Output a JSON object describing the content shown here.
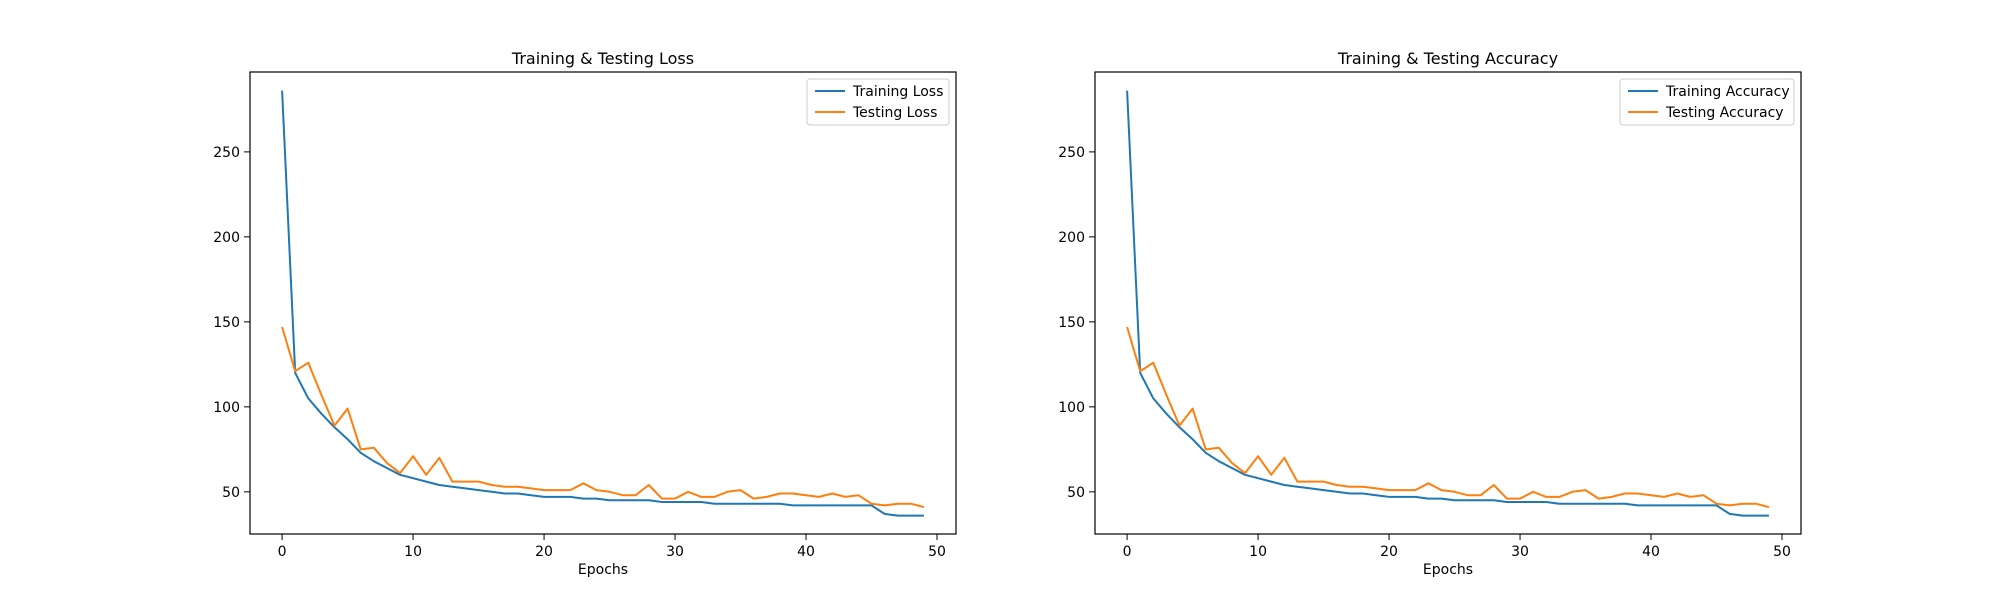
{
  "chart_data": [
    {
      "type": "line",
      "title": "Training & Testing Loss",
      "xlabel": "Epochs",
      "ylabel": "",
      "xlim": [
        -2.45,
        51.45
      ],
      "ylim": [
        25.2,
        297.0
      ],
      "xticks": [
        0,
        10,
        20,
        30,
        40,
        50
      ],
      "yticks": [
        50,
        100,
        150,
        200,
        250
      ],
      "grid": false,
      "legend_position": "top-right",
      "x": [
        0,
        1,
        2,
        3,
        4,
        5,
        6,
        7,
        8,
        9,
        10,
        11,
        12,
        13,
        14,
        15,
        16,
        17,
        18,
        19,
        20,
        21,
        22,
        23,
        24,
        25,
        26,
        27,
        28,
        29,
        30,
        31,
        32,
        33,
        34,
        35,
        36,
        37,
        38,
        39,
        40,
        41,
        42,
        43,
        44,
        45,
        46,
        47,
        48,
        49
      ],
      "series": [
        {
          "name": "Training Loss",
          "color": "#1f77b4",
          "values": [
            286,
            120,
            105,
            96,
            88,
            81,
            73,
            68,
            64,
            60,
            58,
            56,
            54,
            53,
            52,
            51,
            50,
            49,
            49,
            48,
            47,
            47,
            47,
            46,
            46,
            45,
            45,
            45,
            45,
            44,
            44,
            44,
            44,
            43,
            43,
            43,
            43,
            43,
            43,
            42,
            42,
            42,
            42,
            42,
            42,
            42,
            37,
            36,
            36,
            36
          ]
        },
        {
          "name": "Testing Loss",
          "color": "#ff7f0e",
          "values": [
            147,
            121,
            126,
            107,
            89,
            99,
            75,
            76,
            67,
            61,
            71,
            60,
            70,
            56,
            56,
            56,
            54,
            53,
            53,
            52,
            51,
            51,
            51,
            55,
            51,
            50,
            48,
            48,
            54,
            46,
            46,
            50,
            47,
            47,
            50,
            51,
            46,
            47,
            49,
            49,
            48,
            47,
            49,
            47,
            48,
            43,
            42,
            43,
            43,
            41
          ]
        }
      ]
    },
    {
      "type": "line",
      "title": "Training & Testing Accuracy",
      "xlabel": "Epochs",
      "ylabel": "",
      "xlim": [
        -2.45,
        51.45
      ],
      "ylim": [
        25.2,
        297.0
      ],
      "xticks": [
        0,
        10,
        20,
        30,
        40,
        50
      ],
      "yticks": [
        50,
        100,
        150,
        200,
        250
      ],
      "grid": false,
      "legend_position": "top-right",
      "x": [
        0,
        1,
        2,
        3,
        4,
        5,
        6,
        7,
        8,
        9,
        10,
        11,
        12,
        13,
        14,
        15,
        16,
        17,
        18,
        19,
        20,
        21,
        22,
        23,
        24,
        25,
        26,
        27,
        28,
        29,
        30,
        31,
        32,
        33,
        34,
        35,
        36,
        37,
        38,
        39,
        40,
        41,
        42,
        43,
        44,
        45,
        46,
        47,
        48,
        49
      ],
      "series": [
        {
          "name": "Training Accuracy",
          "color": "#1f77b4",
          "values": [
            286,
            120,
            105,
            96,
            88,
            81,
            73,
            68,
            64,
            60,
            58,
            56,
            54,
            53,
            52,
            51,
            50,
            49,
            49,
            48,
            47,
            47,
            47,
            46,
            46,
            45,
            45,
            45,
            45,
            44,
            44,
            44,
            44,
            43,
            43,
            43,
            43,
            43,
            43,
            42,
            42,
            42,
            42,
            42,
            42,
            42,
            37,
            36,
            36,
            36
          ]
        },
        {
          "name": "Testing Accuracy",
          "color": "#ff7f0e",
          "values": [
            147,
            121,
            126,
            107,
            89,
            99,
            75,
            76,
            67,
            61,
            71,
            60,
            70,
            56,
            56,
            56,
            54,
            53,
            53,
            52,
            51,
            51,
            51,
            55,
            51,
            50,
            48,
            48,
            54,
            46,
            46,
            50,
            47,
            47,
            50,
            51,
            46,
            47,
            49,
            49,
            48,
            47,
            49,
            47,
            48,
            43,
            42,
            43,
            43,
            41
          ]
        }
      ]
    }
  ]
}
